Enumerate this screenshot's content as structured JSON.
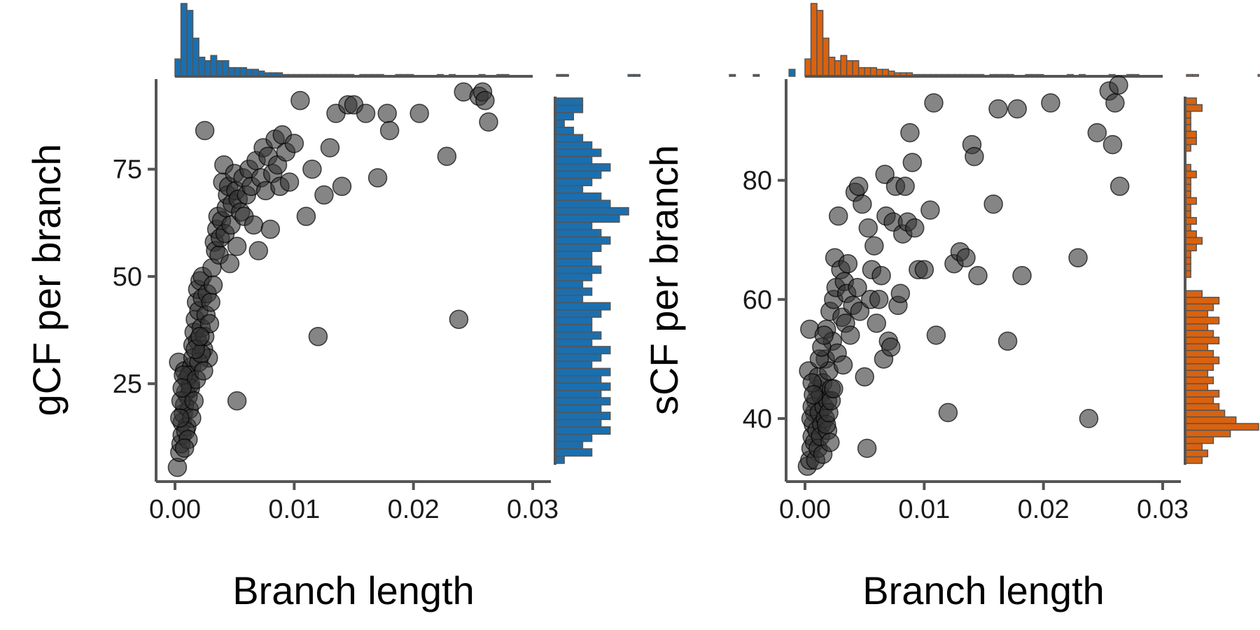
{
  "colors": {
    "axis": "#555555",
    "point": "#333333",
    "panel1_hist": "#1a6fb0",
    "panel2_hist": "#d9620f"
  },
  "chart_data": [
    {
      "type": "scatter",
      "title": "",
      "xlabel": "Branch length",
      "ylabel": "gCF per branch",
      "xlim": [
        0,
        0.03
      ],
      "ylim": [
        3,
        96
      ],
      "xticks": [
        0,
        0.01,
        0.02,
        0.03
      ],
      "xtick_labels": [
        "0.00",
        "0.01",
        "0.02",
        "0.03"
      ],
      "yticks": [
        25,
        50,
        75
      ],
      "ytick_labels": [
        "25",
        "50",
        "75"
      ],
      "grid": false,
      "marginal_histograms": true,
      "points": [
        [
          0.0002,
          5.5
        ],
        [
          0.0004,
          9
        ],
        [
          0.0005,
          11
        ],
        [
          0.0006,
          13
        ],
        [
          0.0006,
          16
        ],
        [
          0.0007,
          18
        ],
        [
          0.0008,
          20
        ],
        [
          0.0009,
          23
        ],
        [
          0.0003,
          30
        ],
        [
          0.0008,
          28
        ],
        [
          0.001,
          26
        ],
        [
          0.0011,
          22
        ],
        [
          0.0012,
          19
        ],
        [
          0.0013,
          25
        ],
        [
          0.0014,
          29
        ],
        [
          0.0015,
          34
        ],
        [
          0.0015,
          31
        ],
        [
          0.0016,
          37
        ],
        [
          0.0017,
          40
        ],
        [
          0.0018,
          44
        ],
        [
          0.0019,
          47
        ],
        [
          0.0019,
          35
        ],
        [
          0.002,
          42
        ],
        [
          0.0021,
          49
        ],
        [
          0.0022,
          38
        ],
        [
          0.0023,
          45
        ],
        [
          0.0023,
          50
        ],
        [
          0.0024,
          33
        ],
        [
          0.0025,
          36
        ],
        [
          0.0026,
          41
        ],
        [
          0.0027,
          46
        ],
        [
          0.0028,
          31
        ],
        [
          0.0029,
          39
        ],
        [
          0.003,
          44
        ],
        [
          0.0031,
          52
        ],
        [
          0.0032,
          48
        ],
        [
          0.0033,
          58
        ],
        [
          0.0034,
          56
        ],
        [
          0.0035,
          61
        ],
        [
          0.0036,
          64
        ],
        [
          0.0037,
          55
        ],
        [
          0.0038,
          59
        ],
        [
          0.0039,
          63
        ],
        [
          0.004,
          72
        ],
        [
          0.0041,
          76
        ],
        [
          0.0042,
          60
        ],
        [
          0.0043,
          66
        ],
        [
          0.0044,
          69
        ],
        [
          0.0045,
          71
        ],
        [
          0.0046,
          53
        ],
        [
          0.0047,
          62
        ],
        [
          0.0048,
          67
        ],
        [
          0.005,
          74
        ],
        [
          0.0051,
          70
        ],
        [
          0.0052,
          57
        ],
        [
          0.0053,
          68
        ],
        [
          0.0055,
          65
        ],
        [
          0.0057,
          73
        ],
        [
          0.0058,
          64
        ],
        [
          0.006,
          69
        ],
        [
          0.0062,
          75
        ],
        [
          0.0064,
          71
        ],
        [
          0.0066,
          62
        ],
        [
          0.0068,
          77
        ],
        [
          0.007,
          56
        ],
        [
          0.0072,
          73
        ],
        [
          0.0074,
          80
        ],
        [
          0.0076,
          70
        ],
        [
          0.0078,
          78
        ],
        [
          0.008,
          61
        ],
        [
          0.0082,
          74
        ],
        [
          0.0084,
          82
        ],
        [
          0.0086,
          76
        ],
        [
          0.0088,
          71
        ],
        [
          0.009,
          83
        ],
        [
          0.0093,
          79
        ],
        [
          0.0096,
          72
        ],
        [
          0.01,
          81
        ],
        [
          0.0105,
          91
        ],
        [
          0.011,
          64
        ],
        [
          0.0115,
          75
        ],
        [
          0.012,
          36
        ],
        [
          0.0125,
          69
        ],
        [
          0.013,
          80
        ],
        [
          0.0135,
          88
        ],
        [
          0.014,
          71
        ],
        [
          0.0145,
          90
        ],
        [
          0.015,
          90
        ],
        [
          0.016,
          88
        ],
        [
          0.017,
          73
        ],
        [
          0.0178,
          88
        ],
        [
          0.018,
          84
        ],
        [
          0.0205,
          88
        ],
        [
          0.0228,
          78
        ],
        [
          0.0238,
          40
        ],
        [
          0.0242,
          93
        ],
        [
          0.0255,
          92
        ],
        [
          0.0258,
          93
        ],
        [
          0.026,
          91
        ],
        [
          0.0263,
          86
        ],
        [
          0.0052,
          21
        ],
        [
          0.0025,
          84
        ],
        [
          0.001,
          15
        ],
        [
          0.0012,
          27
        ],
        [
          0.0013,
          24
        ],
        [
          0.0014,
          17
        ],
        [
          0.0005,
          21
        ],
        [
          0.0007,
          27
        ],
        [
          0.0009,
          14
        ],
        [
          0.0011,
          12
        ],
        [
          0.0016,
          21
        ],
        [
          0.0018,
          26
        ],
        [
          0.002,
          30
        ],
        [
          0.0022,
          32
        ],
        [
          0.0024,
          28
        ],
        [
          0.0004,
          17
        ],
        [
          0.0006,
          24
        ],
        [
          0.0008,
          10
        ],
        [
          0.0017,
          33
        ],
        [
          0.0021,
          36
        ]
      ],
      "x_hist": {
        "bin_width": 0.0005,
        "counts": [
          10,
          42,
          38,
          22,
          11,
          9,
          12,
          9,
          9,
          5,
          5,
          5,
          4,
          4,
          3,
          2,
          2,
          2,
          1,
          1,
          1,
          1,
          1,
          1,
          1,
          1,
          1,
          1,
          1,
          1,
          0,
          1,
          1,
          1,
          1,
          0,
          0,
          1,
          1,
          1,
          0,
          0,
          0,
          0,
          1,
          0,
          1,
          0,
          0,
          0,
          0,
          1,
          0,
          0,
          1,
          1,
          0,
          0,
          0,
          0,
          0,
          0,
          0,
          0,
          1,
          1,
          0,
          0,
          0,
          0,
          0,
          0,
          0,
          0,
          0,
          0,
          1,
          1,
          0,
          0,
          0,
          0,
          0,
          0,
          0,
          0,
          0,
          0,
          0,
          0,
          0,
          0,
          0,
          1,
          0,
          0,
          0,
          1,
          0,
          0,
          0,
          0,
          0,
          4
        ]
      },
      "y_hist": {
        "bin_start": 5,
        "bin_width": 2,
        "counts": [
          1,
          4,
          3,
          4,
          6,
          5,
          6,
          5,
          6,
          5,
          6,
          5,
          6,
          4,
          5,
          6,
          4,
          5,
          4,
          4,
          5,
          6,
          3,
          4,
          3,
          4,
          5,
          4,
          4,
          5,
          6,
          5,
          4,
          7,
          8,
          6,
          5,
          3,
          4,
          5,
          6,
          4,
          5,
          4,
          3,
          2,
          1,
          2,
          3,
          3
        ]
      }
    },
    {
      "type": "scatter",
      "title": "",
      "xlabel": "Branch length",
      "ylabel": "sCF per branch",
      "xlim": [
        0,
        0.03
      ],
      "ylim": [
        30,
        97
      ],
      "xticks": [
        0,
        0.01,
        0.02,
        0.03
      ],
      "xtick_labels": [
        "0.00",
        "0.01",
        "0.02",
        "0.03"
      ],
      "yticks": [
        40,
        60,
        80
      ],
      "ytick_labels": [
        "40",
        "60",
        "80"
      ],
      "grid": false,
      "marginal_histograms": true,
      "points": [
        [
          0.0002,
          32
        ],
        [
          0.0004,
          33
        ],
        [
          0.0005,
          35
        ],
        [
          0.0006,
          37
        ],
        [
          0.0007,
          39
        ],
        [
          0.0008,
          41
        ],
        [
          0.0009,
          43
        ],
        [
          0.001,
          45
        ],
        [
          0.0003,
          48
        ],
        [
          0.0004,
          55
        ],
        [
          0.0005,
          40
        ],
        [
          0.0006,
          42
        ],
        [
          0.0008,
          36
        ],
        [
          0.001,
          38
        ],
        [
          0.0011,
          47
        ],
        [
          0.0012,
          41
        ],
        [
          0.0013,
          44
        ],
        [
          0.0014,
          39
        ],
        [
          0.0015,
          46
        ],
        [
          0.0016,
          42
        ],
        [
          0.0017,
          50
        ],
        [
          0.0018,
          55
        ],
        [
          0.0019,
          43
        ],
        [
          0.002,
          48
        ],
        [
          0.0021,
          58
        ],
        [
          0.0022,
          45
        ],
        [
          0.0023,
          53
        ],
        [
          0.0024,
          60
        ],
        [
          0.0025,
          67
        ],
        [
          0.0026,
          62
        ],
        [
          0.0027,
          51
        ],
        [
          0.0028,
          74
        ],
        [
          0.003,
          65
        ],
        [
          0.0031,
          57
        ],
        [
          0.0032,
          49
        ],
        [
          0.0033,
          63
        ],
        [
          0.0034,
          56
        ],
        [
          0.0035,
          61
        ],
        [
          0.0036,
          66
        ],
        [
          0.0038,
          54
        ],
        [
          0.004,
          59
        ],
        [
          0.0042,
          78
        ],
        [
          0.0044,
          62
        ],
        [
          0.0045,
          79
        ],
        [
          0.0046,
          58
        ],
        [
          0.0048,
          76
        ],
        [
          0.005,
          47
        ],
        [
          0.0052,
          35
        ],
        [
          0.0053,
          72
        ],
        [
          0.0055,
          60
        ],
        [
          0.0056,
          65
        ],
        [
          0.0058,
          69
        ],
        [
          0.006,
          56
        ],
        [
          0.0062,
          60
        ],
        [
          0.0064,
          64
        ],
        [
          0.0066,
          50
        ],
        [
          0.0067,
          81
        ],
        [
          0.0068,
          74
        ],
        [
          0.007,
          53
        ],
        [
          0.0072,
          52
        ],
        [
          0.0074,
          73
        ],
        [
          0.0076,
          79
        ],
        [
          0.0078,
          59
        ],
        [
          0.008,
          61
        ],
        [
          0.0082,
          71
        ],
        [
          0.0084,
          79
        ],
        [
          0.0086,
          73
        ],
        [
          0.0088,
          88
        ],
        [
          0.009,
          83
        ],
        [
          0.0092,
          72
        ],
        [
          0.0095,
          65
        ],
        [
          0.01,
          65
        ],
        [
          0.0105,
          75
        ],
        [
          0.0108,
          93
        ],
        [
          0.011,
          54
        ],
        [
          0.012,
          41
        ],
        [
          0.0125,
          66
        ],
        [
          0.013,
          68
        ],
        [
          0.0135,
          67
        ],
        [
          0.014,
          86
        ],
        [
          0.0142,
          84
        ],
        [
          0.0145,
          64
        ],
        [
          0.0158,
          76
        ],
        [
          0.0162,
          92
        ],
        [
          0.017,
          53
        ],
        [
          0.0178,
          92
        ],
        [
          0.0182,
          64
        ],
        [
          0.0206,
          93
        ],
        [
          0.0229,
          67
        ],
        [
          0.0238,
          40
        ],
        [
          0.0245,
          88
        ],
        [
          0.0255,
          95
        ],
        [
          0.0258,
          86
        ],
        [
          0.026,
          93
        ],
        [
          0.0263,
          96
        ],
        [
          0.0264,
          79
        ],
        [
          0.0006,
          46
        ],
        [
          0.0009,
          33
        ],
        [
          0.0011,
          35
        ],
        [
          0.0013,
          37
        ],
        [
          0.0015,
          34
        ],
        [
          0.0017,
          40
        ],
        [
          0.0019,
          38
        ],
        [
          0.0021,
          36
        ],
        [
          0.0007,
          44
        ],
        [
          0.0012,
          50
        ],
        [
          0.0014,
          52
        ],
        [
          0.0016,
          54
        ],
        [
          0.0018,
          39
        ],
        [
          0.002,
          41
        ],
        [
          0.0022,
          43
        ],
        [
          0.0024,
          45
        ]
      ],
      "x_hist": {
        "bin_width": 0.0005,
        "counts": [
          10,
          42,
          38,
          22,
          11,
          9,
          12,
          9,
          9,
          5,
          5,
          5,
          4,
          4,
          3,
          2,
          2,
          2,
          1,
          1,
          1,
          1,
          1,
          1,
          1,
          1,
          1,
          1,
          1,
          1,
          0,
          1,
          1,
          1,
          1,
          0,
          0,
          1,
          1,
          1,
          0,
          0,
          0,
          0,
          1,
          0,
          1,
          0,
          0,
          0,
          0,
          1,
          0,
          0,
          1,
          1,
          0,
          0,
          0,
          0,
          0,
          0,
          0,
          0,
          1,
          1,
          0,
          0,
          0,
          0,
          0,
          0,
          0,
          0,
          0,
          0,
          1,
          1,
          0,
          0,
          0,
          0,
          0,
          0,
          0,
          0,
          0,
          0,
          0,
          0,
          0,
          0,
          0,
          1,
          0,
          0,
          0,
          1,
          0,
          0,
          0,
          0,
          0,
          4
        ]
      },
      "y_hist": {
        "bin_start": 32,
        "bin_width": 1.25,
        "counts": [
          3,
          4,
          3,
          5,
          8,
          13,
          9,
          7,
          6,
          5,
          6,
          4,
          5,
          4,
          5,
          6,
          5,
          4,
          6,
          5,
          4,
          6,
          4,
          5,
          6,
          3,
          0,
          0,
          1,
          1,
          1,
          1,
          2,
          3,
          2,
          1,
          2,
          1,
          1,
          2,
          1,
          1,
          1,
          2,
          1,
          0,
          0,
          1,
          2,
          2,
          1,
          1,
          1,
          3,
          2
        ]
      }
    }
  ]
}
